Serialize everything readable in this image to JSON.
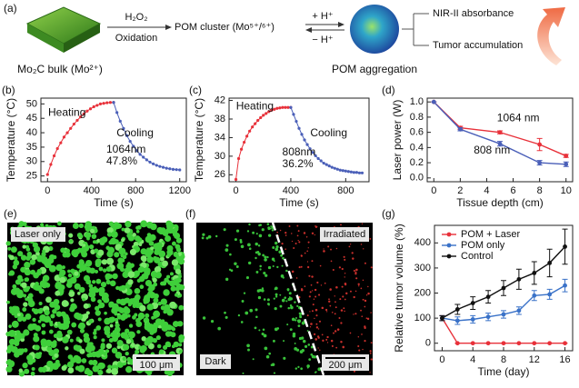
{
  "panel_a": {
    "label": "(a)",
    "reagent": "H₂O₂",
    "step": "Oxidation",
    "cluster": "POM cluster (Mo⁵⁺/⁶⁺)",
    "protonate": "+ H⁺",
    "deprotonate": "− H⁺",
    "bulk": "Mo₂C bulk (Mo²⁺)",
    "aggregate": "POM aggregation",
    "property_1": "NIR-II absorbance",
    "property_2": "Tumor accumulation"
  },
  "chart_data": [
    {
      "type": "line",
      "panel": "(b)",
      "x_label": "Time (s)",
      "y_label": "Temperature (°C)",
      "xlim": [
        -60,
        1260
      ],
      "ylim": [
        23,
        52
      ],
      "xticks": [
        0,
        400,
        800,
        1200
      ],
      "yticks": [
        25,
        30,
        35,
        40,
        45,
        50
      ],
      "annotations": [
        "1064nm",
        "47.8%"
      ],
      "series": [
        {
          "name": "Heating",
          "color": "#e8313a",
          "x": [
            0,
            30,
            60,
            90,
            120,
            150,
            180,
            210,
            240,
            270,
            300,
            330,
            360,
            390,
            420,
            450,
            480,
            510,
            540,
            570,
            600
          ],
          "values": [
            25.5,
            29,
            32,
            34.5,
            36.5,
            38.5,
            40,
            41.5,
            43,
            44.3,
            45.5,
            46.5,
            47.5,
            48.3,
            49,
            49.5,
            50,
            50.2,
            50.4,
            50.5,
            50.5
          ]
        },
        {
          "name": "Cooling",
          "color": "#4a5fb8",
          "x": [
            600,
            630,
            660,
            690,
            720,
            750,
            780,
            810,
            840,
            870,
            900,
            930,
            960,
            990,
            1020,
            1050,
            1080,
            1110,
            1140,
            1170,
            1200
          ],
          "values": [
            50.5,
            47,
            44,
            41.5,
            39,
            37,
            35.3,
            33.8,
            32.5,
            31.5,
            30.6,
            29.8,
            29.2,
            28.7,
            28.3,
            28,
            27.7,
            27.5,
            27.3,
            27.2,
            27.1
          ]
        }
      ]
    },
    {
      "type": "line",
      "panel": "(c)",
      "x_label": "Time (s)",
      "y_label": "Temperature (°C)",
      "xlim": [
        -50,
        970
      ],
      "ylim": [
        24.5,
        42.5
      ],
      "xticks": [
        0,
        400,
        800
      ],
      "yticks": [
        26,
        30,
        34,
        38,
        42
      ],
      "annotations": [
        "808nm",
        "36.2%"
      ],
      "series": [
        {
          "name": "Heating",
          "color": "#e8313a",
          "x": [
            0,
            20,
            40,
            60,
            80,
            100,
            120,
            140,
            160,
            180,
            200,
            220,
            240,
            260,
            280,
            300,
            320,
            340,
            360,
            380,
            400
          ],
          "values": [
            25,
            29.5,
            31.5,
            33,
            34.3,
            35.4,
            36.3,
            37,
            37.7,
            38.3,
            38.8,
            39.2,
            39.6,
            39.9,
            40.1,
            40.3,
            40.4,
            40.5,
            40.5,
            40.5,
            40.5
          ]
        },
        {
          "name": "Cooling",
          "color": "#4a5fb8",
          "x": [
            400,
            420,
            440,
            460,
            480,
            500,
            520,
            540,
            560,
            580,
            600,
            620,
            640,
            660,
            680,
            700,
            720,
            740,
            760,
            780,
            800,
            820,
            840,
            860,
            880,
            900,
            920
          ],
          "values": [
            40.5,
            39,
            37.5,
            36,
            34.7,
            33.5,
            32.5,
            31.6,
            30.8,
            30.1,
            29.5,
            29,
            28.5,
            28.2,
            27.9,
            27.6,
            27.4,
            27.2,
            27,
            26.9,
            26.8,
            26.7,
            26.6,
            26.5,
            26.5,
            26.4,
            26.4
          ]
        }
      ]
    },
    {
      "type": "line",
      "panel": "(d)",
      "x_label": "Tissue depth (cm)",
      "y_label": "Laser power (W)",
      "xlim": [
        -0.5,
        10.5
      ],
      "ylim": [
        -0.05,
        1.05
      ],
      "xticks": [
        0,
        2,
        4,
        6,
        8,
        10
      ],
      "yticks": [
        {
          "value": 0,
          "label": "0.0"
        },
        0.2,
        0.4,
        0.6,
        0.8,
        {
          "value": 1,
          "label": "1.0"
        }
      ],
      "annotations": [],
      "series": [
        {
          "name": "1064 nm",
          "color": "#e8313a",
          "x": [
            0,
            2,
            5,
            8,
            10
          ],
          "values": [
            1.0,
            0.66,
            0.6,
            0.44,
            0.29
          ],
          "errors": [
            0,
            0.02,
            0.02,
            0.08,
            0.02
          ]
        },
        {
          "name": "808 nm",
          "color": "#4a5fb8",
          "x": [
            0,
            2,
            5,
            8,
            10
          ],
          "values": [
            1.0,
            0.64,
            0.45,
            0.2,
            0.18
          ],
          "errors": [
            0,
            0.02,
            0.03,
            0.03,
            0.03
          ]
        }
      ]
    },
    {
      "type": "line",
      "panel": "(g)",
      "x_label": "Time (day)",
      "y_label": "Relative tumor volume (%)",
      "xlim": [
        -1,
        17
      ],
      "ylim": [
        -30,
        470
      ],
      "xticks": [
        0,
        4,
        8,
        12,
        16
      ],
      "yticks": [
        0,
        100,
        200,
        300,
        400
      ],
      "legend": "upper left",
      "annotations": [],
      "series": [
        {
          "name": "POM + Laser",
          "color": "#e8313a",
          "x": [
            0,
            2,
            4,
            6,
            8,
            10,
            12,
            14,
            16
          ],
          "values": [
            100,
            0,
            0,
            0,
            0,
            0,
            0,
            0,
            0
          ],
          "errors": [
            10,
            0,
            0,
            0,
            0,
            0,
            0,
            0,
            0
          ]
        },
        {
          "name": "POM only",
          "color": "#3a72c8",
          "x": [
            0,
            2,
            4,
            6,
            8,
            10,
            12,
            14,
            16
          ],
          "values": [
            100,
            90,
            95,
            105,
            115,
            130,
            190,
            195,
            230
          ],
          "errors": [
            10,
            15,
            15,
            15,
            15,
            15,
            20,
            20,
            25
          ]
        },
        {
          "name": "Control",
          "color": "#111111",
          "x": [
            0,
            2,
            4,
            6,
            8,
            10,
            12,
            14,
            16
          ],
          "values": [
            100,
            135,
            160,
            185,
            220,
            255,
            280,
            320,
            385
          ],
          "errors": [
            10,
            20,
            25,
            25,
            30,
            40,
            45,
            55,
            70
          ]
        }
      ]
    }
  ],
  "panel_e": {
    "label": "(e)",
    "caption": "Laser only",
    "scale_bar": "100 μm"
  },
  "panel_f": {
    "label": "(f)",
    "left": "Dark",
    "right": "Irradiated",
    "scale_bar": "200 μm"
  }
}
